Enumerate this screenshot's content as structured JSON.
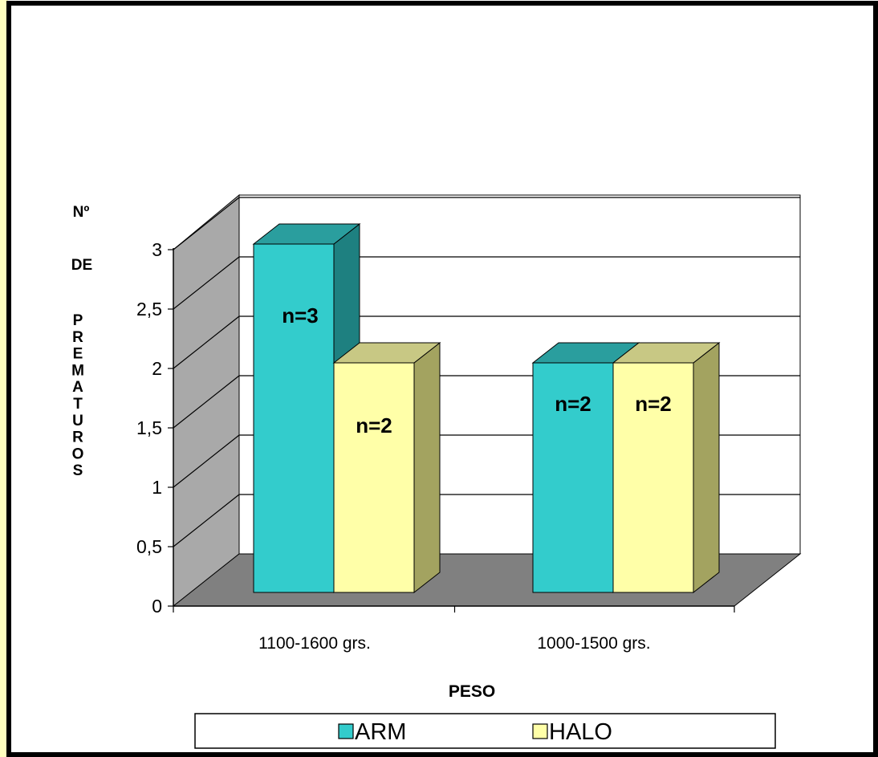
{
  "chart_data": {
    "type": "bar",
    "title": "",
    "xlabel": "PESO",
    "ylabel": "Nº DE PREMATUROS",
    "ylabel_parts": {
      "top": "Nº",
      "middle": "DE",
      "bottom": "PREMATUROS"
    },
    "categories": [
      "1100-1600 grs.",
      "1000-1500 grs."
    ],
    "series": [
      {
        "name": "ARM",
        "values": [
          3,
          2
        ],
        "labels": [
          "n=3",
          "n=2"
        ],
        "color": "#33CCCC",
        "side_color": "#1E8080",
        "top_color": "#2A9E9E"
      },
      {
        "name": "HALO",
        "values": [
          2,
          2
        ],
        "labels": [
          "n=2",
          "n=2"
        ],
        "color": "#FFFFA8",
        "side_color": "#A3A360",
        "top_color": "#C8C884"
      }
    ],
    "ylim": [
      0,
      3
    ],
    "yticks": [
      "0",
      "0,5",
      "1",
      "1,5",
      "2",
      "2,5",
      "3"
    ],
    "grid": true,
    "legend": "bottom"
  },
  "colors": {
    "wall": "#A9A9A9",
    "floor": "#808080",
    "border": "#000000",
    "left_strip": "#FFFFBF"
  }
}
